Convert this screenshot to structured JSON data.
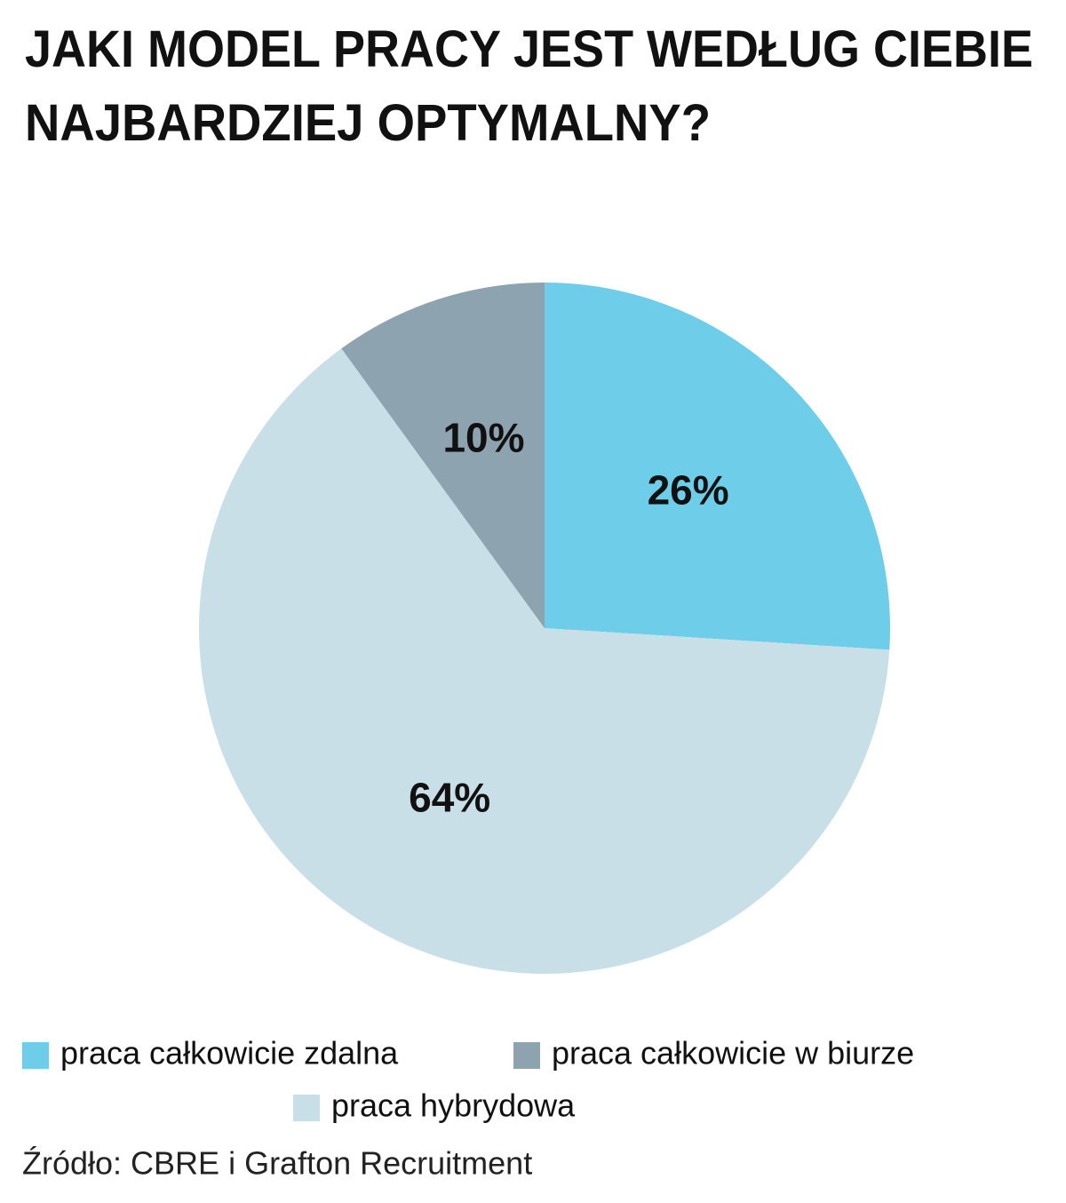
{
  "chart_data": {
    "type": "pie",
    "title": [
      "JAKI MODEL PRACY JEST WEDŁUG CIEBIE",
      "NAJBARDZIEJ OPTYMALNY?"
    ],
    "categories": [
      "praca całkowicie zdalna",
      "praca hybrydowa",
      "praca całkowicie w biurze"
    ],
    "values": [
      26,
      64,
      10
    ],
    "value_labels": [
      "26%",
      "64%",
      "10%"
    ],
    "colors": [
      "#6ecde9",
      "#c8dfe8",
      "#8ea3b0"
    ],
    "source": "Źródło: CBRE i Grafton Recruitment"
  }
}
